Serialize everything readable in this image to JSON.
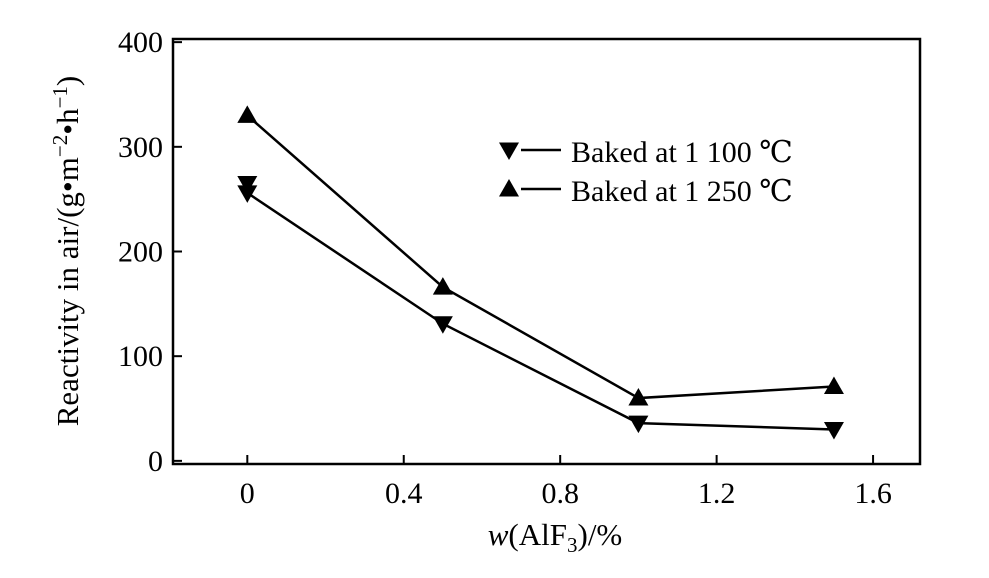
{
  "chart_data": {
    "type": "line",
    "xlabel_parts": {
      "italic": "w",
      "pre": "(AlF",
      "sub": "3",
      "post": ")/%"
    },
    "ylabel_parts": {
      "pre": "Reactivity in air/(g•m",
      "sup1": "−2",
      "mid": "•h",
      "sup2": "−1",
      "post": ")"
    },
    "xlim": [
      -0.19,
      1.72
    ],
    "ylim": [
      -3,
      403
    ],
    "x_ticks": [
      0,
      0.4,
      0.8,
      1.2,
      1.6
    ],
    "x_tick_labels": [
      "0",
      "0.4",
      "0.8",
      "1.2",
      "1.6"
    ],
    "y_ticks": [
      0,
      100,
      200,
      300,
      400
    ],
    "y_tick_labels": [
      "0",
      "100",
      "200",
      "300",
      "400"
    ],
    "legend_position": "upper-right",
    "series": [
      {
        "name": "Baked at 1 100 ℃",
        "marker": "triangle-down",
        "x": [
          0,
          0,
          0.5,
          1.0,
          1.5
        ],
        "y": [
          265,
          256,
          131,
          36,
          30
        ]
      },
      {
        "name": "Baked at 1 250 ℃",
        "marker": "triangle-up",
        "x": [
          0,
          0.5,
          1.0,
          1.5
        ],
        "y": [
          330,
          166,
          60,
          71
        ]
      }
    ]
  }
}
